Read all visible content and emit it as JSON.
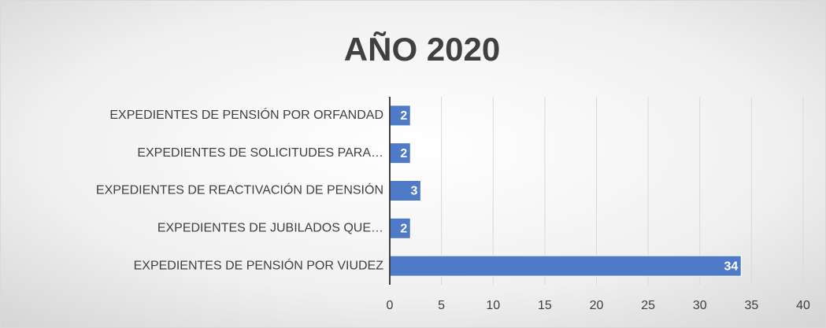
{
  "chart_data": {
    "type": "bar",
    "orientation": "horizontal",
    "title": "AÑO 2020",
    "categories": [
      "EXPEDIENTES DE PENSIÓN POR ORFANDAD",
      "EXPEDIENTES DE SOLICITUDES PARA…",
      "EXPEDIENTES DE REACTIVACIÓN DE PENSIÓN",
      "EXPEDIENTES DE JUBILADOS QUE…",
      "EXPEDIENTES DE PENSIÓN POR VIUDEZ"
    ],
    "values": [
      2,
      2,
      3,
      2,
      34
    ],
    "color": "#4f7ac7",
    "xlim": [
      0,
      40
    ],
    "xticks": [
      0,
      5,
      10,
      15,
      20,
      25,
      30,
      35,
      40
    ],
    "grid": true
  }
}
